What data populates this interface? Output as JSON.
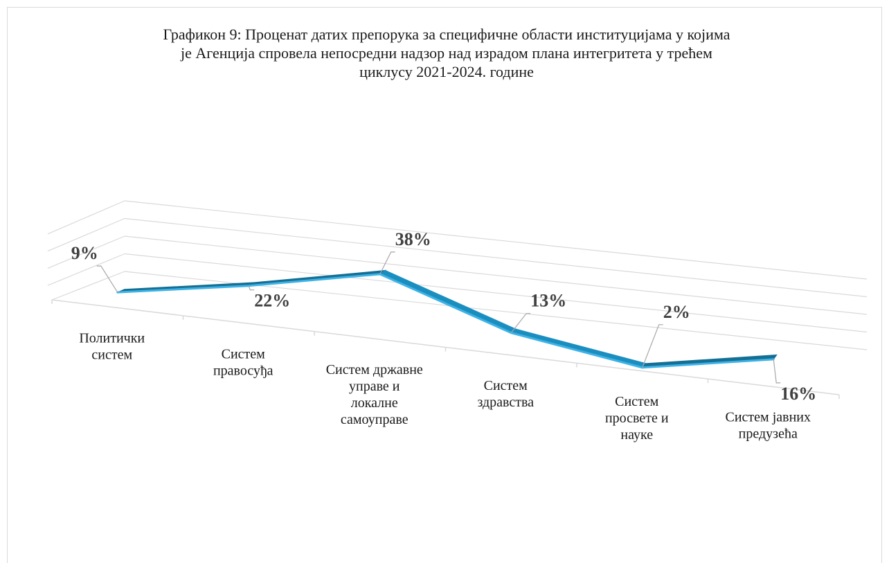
{
  "chart_data": {
    "type": "line",
    "title": "Графикон 9: Проценат датих препорука за специфичне области институцијама у којима\nје Агенција спровела непосредни надзор над израдом плана интегритета у трећем\nциклусу 2021-2024. године",
    "categories": [
      [
        "Политички",
        "систем"
      ],
      [
        "Систем",
        "правосуђа"
      ],
      [
        "Систем државне",
        "управе и",
        "локалне",
        "самоуправе"
      ],
      [
        "Систем",
        "здравства"
      ],
      [
        "Систем",
        "просвете и",
        "науке"
      ],
      [
        "Систем јавних",
        "предузећа"
      ]
    ],
    "values": [
      9,
      22,
      38,
      13,
      2,
      16
    ],
    "data_labels": [
      "9%",
      "22%",
      "38%",
      "13%",
      "2%",
      "16%"
    ],
    "legend": "none",
    "grid": true,
    "style": "3d-ribbon"
  },
  "colors": {
    "ribbon_side": "#1a8fbf",
    "ribbon_dark": "#146f94",
    "ribbon_edge": "#3fb2e6",
    "grid": "#d9d9d9",
    "leader": "#a6a6a6"
  }
}
